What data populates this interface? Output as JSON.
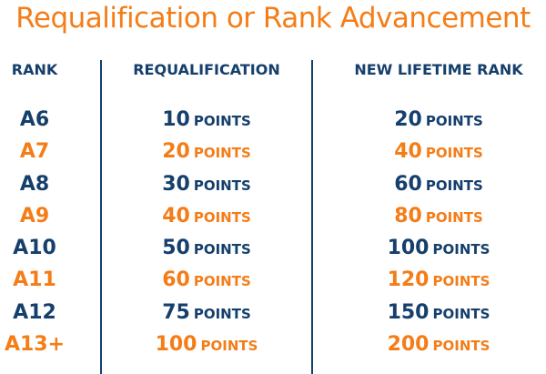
{
  "title": "Requalification or Rank Advancement",
  "headers": {
    "rank": "RANK",
    "requalification": "REQUALIFICATION",
    "lifetime": "NEW LIFETIME RANK"
  },
  "unit": "POINTS",
  "colors": {
    "navy": "#153f6c",
    "orange": "#f47d18"
  },
  "rows": [
    {
      "rank": "A6",
      "requalification": "10",
      "lifetime": "20"
    },
    {
      "rank": "A7",
      "requalification": "20",
      "lifetime": "40"
    },
    {
      "rank": "A8",
      "requalification": "30",
      "lifetime": "60"
    },
    {
      "rank": "A9",
      "requalification": "40",
      "lifetime": "80"
    },
    {
      "rank": "A10",
      "requalification": "50",
      "lifetime": "100"
    },
    {
      "rank": "A11",
      "requalification": "60",
      "lifetime": "120"
    },
    {
      "rank": "A12",
      "requalification": "75",
      "lifetime": "150"
    },
    {
      "rank": "A13+",
      "requalification": "100",
      "lifetime": "200"
    }
  ]
}
